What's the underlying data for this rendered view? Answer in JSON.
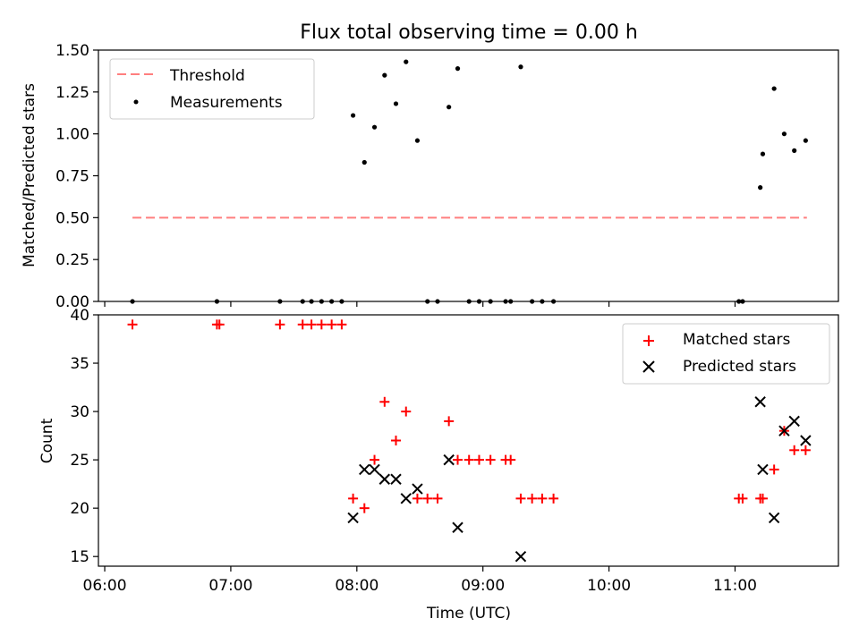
{
  "figure": {
    "title": "Flux total observing time = 0.00 h"
  },
  "chart_data": [
    {
      "type": "scatter",
      "title": "Flux total observing time = 0.00 h",
      "xlabel": "",
      "ylabel": "Matched/Predicted stars",
      "xlim": [
        -0.05,
        5.82
      ],
      "ylim": [
        0,
        1.5
      ],
      "yticks": [
        0,
        0.25,
        0.5,
        0.75,
        1.0,
        1.25,
        1.5
      ],
      "ytick_labels": [
        "0.00",
        "0.25",
        "0.50",
        "0.75",
        "1.00",
        "1.25",
        "1.50"
      ],
      "xticks": [
        0,
        1,
        2,
        3,
        4,
        5
      ],
      "x_unit": "hours after 06:00 UTC",
      "legend": {
        "placement": "top-left",
        "entries": [
          "Threshold",
          "Measurements"
        ]
      },
      "threshold": {
        "name": "Threshold",
        "x": [
          0.22,
          5.57
        ],
        "y": 0.5,
        "color": "#ff7f7f"
      },
      "series": [
        {
          "name": "Measurements",
          "color": "#000000",
          "points": [
            [
              0.22,
              0.0
            ],
            [
              0.89,
              0.0
            ],
            [
              1.39,
              0.0
            ],
            [
              1.57,
              0.0
            ],
            [
              1.64,
              0.0
            ],
            [
              1.72,
              0.0
            ],
            [
              1.8,
              0.0
            ],
            [
              1.88,
              0.0
            ],
            [
              1.97,
              1.11
            ],
            [
              2.06,
              0.83
            ],
            [
              2.14,
              1.04
            ],
            [
              2.22,
              1.35
            ],
            [
              2.31,
              1.18
            ],
            [
              2.39,
              1.43
            ],
            [
              2.48,
              0.96
            ],
            [
              2.56,
              0.0
            ],
            [
              2.64,
              0.0
            ],
            [
              2.73,
              1.16
            ],
            [
              2.8,
              1.39
            ],
            [
              2.89,
              0.0
            ],
            [
              2.97,
              0.0
            ],
            [
              3.06,
              0.0
            ],
            [
              3.18,
              0.0
            ],
            [
              3.22,
              0.0
            ],
            [
              3.3,
              1.4
            ],
            [
              3.39,
              0.0
            ],
            [
              3.47,
              0.0
            ],
            [
              3.56,
              0.0
            ],
            [
              5.03,
              0.0
            ],
            [
              5.06,
              0.0
            ],
            [
              5.2,
              0.68
            ],
            [
              5.22,
              0.88
            ],
            [
              5.31,
              1.27
            ],
            [
              5.39,
              1.0
            ],
            [
              5.47,
              0.9
            ],
            [
              5.56,
              0.96
            ]
          ]
        }
      ]
    },
    {
      "type": "scatter",
      "title": "",
      "xlabel": "Time (UTC)",
      "ylabel": "Count",
      "xlim": [
        -0.05,
        5.82
      ],
      "ylim": [
        14,
        40
      ],
      "yticks": [
        15,
        20,
        25,
        30,
        35,
        40
      ],
      "xticks": [
        0,
        1,
        2,
        3,
        4,
        5
      ],
      "xtick_labels": [
        "06:00",
        "07:00",
        "08:00",
        "09:00",
        "10:00",
        "11:00"
      ],
      "x_unit": "hours after 06:00 UTC",
      "legend": {
        "placement": "top-right",
        "entries": [
          "Matched stars",
          "Predicted stars"
        ]
      },
      "series": [
        {
          "name": "Matched stars",
          "marker": "plus",
          "color": "#ff0000",
          "points": [
            [
              0.22,
              39
            ],
            [
              0.89,
              39
            ],
            [
              0.91,
              39
            ],
            [
              1.39,
              39
            ],
            [
              1.57,
              39
            ],
            [
              1.64,
              39
            ],
            [
              1.72,
              39
            ],
            [
              1.8,
              39
            ],
            [
              1.88,
              39
            ],
            [
              1.97,
              21
            ],
            [
              2.06,
              20
            ],
            [
              2.14,
              25
            ],
            [
              2.22,
              31
            ],
            [
              2.31,
              27
            ],
            [
              2.39,
              30
            ],
            [
              2.48,
              21
            ],
            [
              2.56,
              21
            ],
            [
              2.64,
              21
            ],
            [
              2.73,
              29
            ],
            [
              2.8,
              25
            ],
            [
              2.89,
              25
            ],
            [
              2.97,
              25
            ],
            [
              3.06,
              25
            ],
            [
              3.18,
              25
            ],
            [
              3.22,
              25
            ],
            [
              3.3,
              21
            ],
            [
              3.39,
              21
            ],
            [
              3.47,
              21
            ],
            [
              3.56,
              21
            ],
            [
              5.03,
              21
            ],
            [
              5.06,
              21
            ],
            [
              5.2,
              21
            ],
            [
              5.22,
              21
            ],
            [
              5.31,
              24
            ],
            [
              5.39,
              28
            ],
            [
              5.47,
              26
            ],
            [
              5.56,
              26
            ]
          ]
        },
        {
          "name": "Predicted stars",
          "marker": "x",
          "color": "#000000",
          "points": [
            [
              1.97,
              19
            ],
            [
              2.06,
              24
            ],
            [
              2.14,
              24
            ],
            [
              2.22,
              23
            ],
            [
              2.31,
              23
            ],
            [
              2.39,
              21
            ],
            [
              2.48,
              22
            ],
            [
              2.73,
              25
            ],
            [
              2.8,
              18
            ],
            [
              3.3,
              15
            ],
            [
              5.2,
              31
            ],
            [
              5.22,
              24
            ],
            [
              5.31,
              19
            ],
            [
              5.39,
              28
            ],
            [
              5.47,
              29
            ],
            [
              5.56,
              27
            ]
          ]
        }
      ]
    }
  ]
}
